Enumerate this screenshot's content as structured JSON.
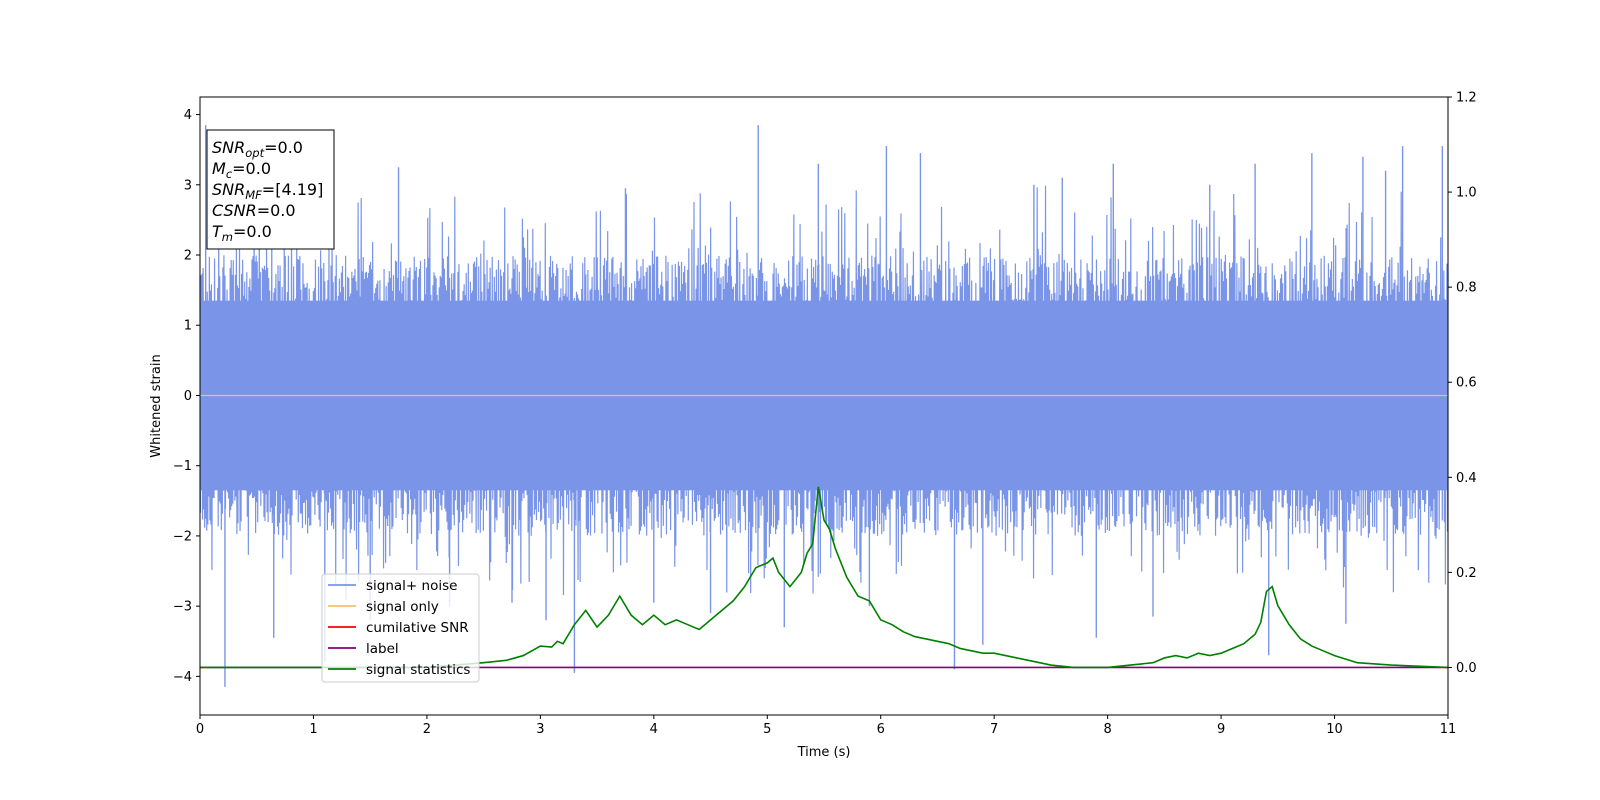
{
  "chart_data": {
    "type": "line",
    "xlabel": "Time (s)",
    "ylabel": "Whitened strain",
    "xlim": [
      0,
      11
    ],
    "ylim_left": [
      -4.55,
      4.25
    ],
    "ylim_right": [
      -0.1,
      1.2
    ],
    "x_ticks": [
      "0",
      "1",
      "2",
      "3",
      "4",
      "5",
      "6",
      "7",
      "8",
      "9",
      "10",
      "11"
    ],
    "y_left_ticks": [
      "4",
      "3",
      "2",
      "1",
      "0",
      "−1",
      "−2",
      "−3",
      "−4"
    ],
    "y_right_ticks": [
      "1.2",
      "1.0",
      "0.8",
      "0.6",
      "0.4",
      "0.2",
      "0.0"
    ],
    "grid": false,
    "legend_position": "lower-left",
    "noise_band": {
      "name": "signal+ noise",
      "color": "#7a95e8",
      "typical_range": [
        -2.0,
        2.0
      ],
      "peaks": [
        [
          0.05,
          3.85
        ],
        [
          0.22,
          -4.15
        ],
        [
          0.65,
          -3.45
        ],
        [
          1.1,
          -3.8
        ],
        [
          1.5,
          -3.2
        ],
        [
          1.75,
          3.25
        ],
        [
          2.2,
          -3.0
        ],
        [
          2.75,
          -2.95
        ],
        [
          3.05,
          -3.2
        ],
        [
          3.3,
          -3.95
        ],
        [
          3.75,
          2.95
        ],
        [
          4.0,
          -2.95
        ],
        [
          4.5,
          -3.1
        ],
        [
          4.92,
          3.85
        ],
        [
          5.15,
          -3.3
        ],
        [
          5.45,
          3.3
        ],
        [
          5.9,
          -3.0
        ],
        [
          6.05,
          3.55
        ],
        [
          6.35,
          3.45
        ],
        [
          6.65,
          -3.9
        ],
        [
          6.9,
          -3.55
        ],
        [
          7.35,
          3.0
        ],
        [
          7.6,
          3.1
        ],
        [
          7.9,
          -3.45
        ],
        [
          8.05,
          3.3
        ],
        [
          8.4,
          -3.15
        ],
        [
          8.9,
          3.0
        ],
        [
          9.3,
          3.3
        ],
        [
          9.42,
          -3.7
        ],
        [
          9.8,
          3.45
        ],
        [
          10.1,
          -3.25
        ],
        [
          10.25,
          3.4
        ],
        [
          10.45,
          3.2
        ],
        [
          10.6,
          3.55
        ],
        [
          10.95,
          3.55
        ]
      ]
    },
    "series": [
      {
        "name": "signal only",
        "axis": "left",
        "color": "#f5c16c",
        "x": [
          0,
          11
        ],
        "y": [
          0,
          0
        ]
      },
      {
        "name": "cumilative SNR",
        "axis": "right",
        "color": "#ff0000",
        "x": [],
        "y": []
      },
      {
        "name": "label",
        "axis": "right",
        "color": "#800080",
        "x": [
          0,
          11
        ],
        "y": [
          0.0,
          0.0
        ]
      },
      {
        "name": "signal statistics",
        "axis": "right",
        "color": "#008000",
        "x": [
          0,
          0.5,
          1.0,
          1.5,
          2.0,
          2.5,
          2.7,
          2.85,
          3.0,
          3.1,
          3.15,
          3.2,
          3.3,
          3.4,
          3.5,
          3.6,
          3.7,
          3.8,
          3.9,
          4.0,
          4.1,
          4.2,
          4.3,
          4.4,
          4.5,
          4.6,
          4.7,
          4.8,
          4.9,
          5.0,
          5.05,
          5.1,
          5.2,
          5.3,
          5.35,
          5.4,
          5.45,
          5.5,
          5.55,
          5.6,
          5.7,
          5.8,
          5.9,
          6.0,
          6.1,
          6.2,
          6.3,
          6.4,
          6.5,
          6.6,
          6.7,
          6.8,
          6.9,
          7.0,
          7.1,
          7.2,
          7.3,
          7.4,
          7.5,
          7.7,
          8.0,
          8.2,
          8.4,
          8.5,
          8.6,
          8.7,
          8.8,
          8.9,
          9.0,
          9.1,
          9.2,
          9.3,
          9.35,
          9.4,
          9.45,
          9.5,
          9.6,
          9.7,
          9.8,
          9.9,
          10.0,
          10.2,
          10.5,
          11.0
        ],
        "y": [
          0.0,
          0.0,
          0.0,
          0.0,
          0.0,
          0.01,
          0.015,
          0.025,
          0.045,
          0.043,
          0.055,
          0.05,
          0.09,
          0.12,
          0.085,
          0.11,
          0.15,
          0.11,
          0.09,
          0.11,
          0.09,
          0.1,
          0.09,
          0.08,
          0.1,
          0.12,
          0.14,
          0.17,
          0.21,
          0.22,
          0.23,
          0.2,
          0.17,
          0.2,
          0.24,
          0.26,
          0.38,
          0.31,
          0.29,
          0.25,
          0.19,
          0.15,
          0.14,
          0.1,
          0.09,
          0.075,
          0.065,
          0.06,
          0.055,
          0.05,
          0.04,
          0.035,
          0.03,
          0.03,
          0.025,
          0.02,
          0.015,
          0.01,
          0.005,
          0.0,
          0.0,
          0.005,
          0.01,
          0.02,
          0.025,
          0.02,
          0.03,
          0.025,
          0.03,
          0.04,
          0.05,
          0.07,
          0.095,
          0.16,
          0.17,
          0.13,
          0.09,
          0.06,
          0.045,
          0.035,
          0.025,
          0.01,
          0.005,
          0.0
        ]
      }
    ],
    "legend": [
      "signal+ noise",
      "signal only",
      "cumilative SNR",
      "label",
      "signal statistics"
    ],
    "info_box": [
      {
        "base": "SNR",
        "sub": "opt",
        "rest": "=0.0"
      },
      {
        "base": "M",
        "sub": "c",
        "rest": "=0.0"
      },
      {
        "base": "SNR",
        "sub": "MF",
        "rest": "=[4.19]"
      },
      {
        "base": "CSNR",
        "sub": "",
        "rest": "=0.0"
      },
      {
        "base": "T",
        "sub": "m",
        "rest": "=0.0"
      }
    ]
  }
}
